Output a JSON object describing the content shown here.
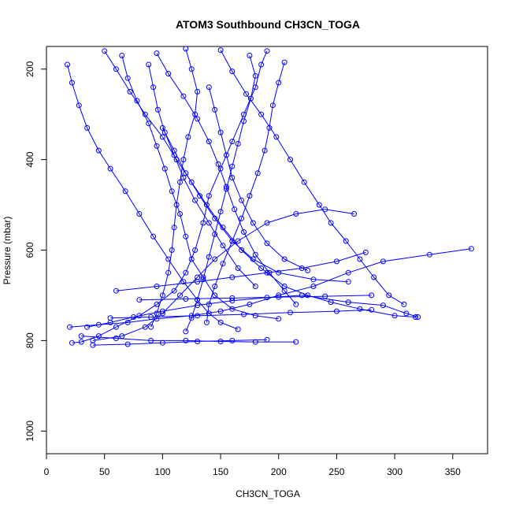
{
  "chart_data": {
    "type": "scatter",
    "title": "ATOM3 Southbound CH3CN_TOGA",
    "xlabel": "CH3CN_TOGA",
    "ylabel": "Pressure (mbar)",
    "xlim": [
      0,
      380
    ],
    "ylim": [
      1050,
      150
    ],
    "y_reversed": true,
    "x_ticks": [
      0,
      50,
      100,
      150,
      200,
      250,
      300,
      350
    ],
    "y_ticks": [
      200,
      400,
      600,
      800,
      1000
    ],
    "grid": false,
    "legend": "none",
    "color": "#0000ff",
    "marker": "open-circle",
    "series": [
      {
        "values": [
          [
            22,
            805
          ],
          [
            30,
            803
          ],
          [
            45,
            790
          ],
          [
            60,
            770
          ],
          [
            80,
            745
          ],
          [
            95,
            720
          ],
          [
            110,
            690
          ],
          [
            120,
            650
          ],
          [
            128,
            600
          ],
          [
            135,
            540
          ],
          [
            140,
            480
          ],
          [
            150,
            420
          ],
          [
            160,
            360
          ],
          [
            170,
            300
          ],
          [
            180,
            240
          ],
          [
            185,
            190
          ],
          [
            190,
            160
          ]
        ]
      },
      {
        "values": [
          [
            35,
            770
          ],
          [
            55,
            760
          ],
          [
            75,
            748
          ],
          [
            100,
            735
          ],
          [
            130,
            722
          ],
          [
            160,
            712
          ],
          [
            190,
            705
          ],
          [
            220,
            700
          ],
          [
            260,
            715
          ],
          [
            290,
            722
          ],
          [
            310,
            740
          ],
          [
            320,
            748
          ]
        ]
      },
      {
        "values": [
          [
            20,
            770
          ],
          [
            45,
            765
          ],
          [
            70,
            760
          ],
          [
            95,
            752
          ],
          [
            125,
            745
          ],
          [
            150,
            735
          ],
          [
            175,
            720
          ],
          [
            200,
            700
          ],
          [
            230,
            680
          ],
          [
            260,
            650
          ],
          [
            290,
            625
          ],
          [
            330,
            610
          ],
          [
            366,
            597
          ]
        ]
      },
      {
        "values": [
          [
            40,
            800
          ],
          [
            65,
            790
          ],
          [
            85,
            770
          ],
          [
            100,
            740
          ],
          [
            115,
            700
          ],
          [
            130,
            660
          ],
          [
            145,
            620
          ],
          [
            165,
            580
          ],
          [
            190,
            540
          ],
          [
            215,
            520
          ],
          [
            240,
            510
          ],
          [
            265,
            520
          ]
        ]
      },
      {
        "values": [
          [
            18,
            190
          ],
          [
            22,
            230
          ],
          [
            28,
            280
          ],
          [
            35,
            330
          ],
          [
            45,
            380
          ],
          [
            55,
            420
          ],
          [
            68,
            470
          ],
          [
            80,
            520
          ],
          [
            92,
            570
          ],
          [
            105,
            620
          ],
          [
            118,
            670
          ],
          [
            130,
            710
          ],
          [
            140,
            740
          ],
          [
            150,
            760
          ],
          [
            165,
            775
          ]
        ]
      },
      {
        "values": [
          [
            50,
            160
          ],
          [
            60,
            200
          ],
          [
            72,
            250
          ],
          [
            85,
            300
          ],
          [
            100,
            350
          ],
          [
            112,
            400
          ],
          [
            125,
            450
          ],
          [
            138,
            500
          ],
          [
            152,
            550
          ],
          [
            168,
            600
          ],
          [
            185,
            640
          ],
          [
            205,
            680
          ],
          [
            225,
            700
          ],
          [
            245,
            715
          ],
          [
            270,
            730
          ],
          [
            300,
            745
          ],
          [
            318,
            748
          ]
        ]
      },
      {
        "values": [
          [
            95,
            165
          ],
          [
            105,
            210
          ],
          [
            118,
            260
          ],
          [
            130,
            310
          ],
          [
            140,
            360
          ],
          [
            148,
            410
          ],
          [
            155,
            460
          ],
          [
            162,
            510
          ],
          [
            170,
            560
          ],
          [
            180,
            610
          ],
          [
            192,
            650
          ],
          [
            205,
            690
          ],
          [
            215,
            720
          ]
        ]
      },
      {
        "values": [
          [
            120,
            155
          ],
          [
            125,
            200
          ],
          [
            130,
            250
          ],
          [
            128,
            300
          ],
          [
            122,
            350
          ],
          [
            118,
            400
          ],
          [
            115,
            450
          ],
          [
            112,
            500
          ],
          [
            110,
            550
          ],
          [
            108,
            600
          ],
          [
            105,
            650
          ],
          [
            100,
            700
          ],
          [
            95,
            740
          ],
          [
            90,
            770
          ]
        ]
      },
      {
        "values": [
          [
            150,
            158
          ],
          [
            160,
            205
          ],
          [
            172,
            255
          ],
          [
            185,
            300
          ],
          [
            198,
            350
          ],
          [
            210,
            400
          ],
          [
            222,
            450
          ],
          [
            235,
            500
          ],
          [
            245,
            540
          ],
          [
            258,
            580
          ],
          [
            270,
            620
          ],
          [
            282,
            660
          ],
          [
            295,
            700
          ],
          [
            308,
            720
          ]
        ]
      },
      {
        "values": [
          [
            65,
            170
          ],
          [
            70,
            220
          ],
          [
            78,
            270
          ],
          [
            88,
            320
          ],
          [
            95,
            370
          ],
          [
            102,
            420
          ],
          [
            108,
            470
          ],
          [
            115,
            520
          ],
          [
            120,
            570
          ],
          [
            125,
            620
          ],
          [
            135,
            660
          ],
          [
            145,
            700
          ],
          [
            160,
            730
          ],
          [
            180,
            745
          ],
          [
            200,
            752
          ]
        ]
      },
      {
        "values": [
          [
            175,
            170
          ],
          [
            180,
            215
          ],
          [
            176,
            265
          ],
          [
            170,
            315
          ],
          [
            165,
            365
          ],
          [
            160,
            415
          ],
          [
            155,
            465
          ],
          [
            150,
            515
          ],
          [
            145,
            565
          ],
          [
            140,
            615
          ],
          [
            135,
            665
          ],
          [
            130,
            710
          ],
          [
            125,
            750
          ],
          [
            120,
            780
          ]
        ]
      },
      {
        "values": [
          [
            205,
            185
          ],
          [
            200,
            230
          ],
          [
            195,
            280
          ],
          [
            192,
            330
          ],
          [
            188,
            380
          ],
          [
            182,
            430
          ],
          [
            175,
            480
          ],
          [
            168,
            530
          ],
          [
            160,
            580
          ],
          [
            152,
            630
          ],
          [
            145,
            680
          ],
          [
            140,
            720
          ],
          [
            138,
            760
          ]
        ]
      },
      {
        "values": [
          [
            30,
            790
          ],
          [
            60,
            795
          ],
          [
            90,
            800
          ],
          [
            120,
            800
          ],
          [
            150,
            802
          ],
          [
            180,
            803
          ],
          [
            215,
            803
          ]
        ]
      },
      {
        "values": [
          [
            40,
            810
          ],
          [
            70,
            808
          ],
          [
            100,
            805
          ],
          [
            130,
            802
          ],
          [
            160,
            800
          ],
          [
            190,
            798
          ]
        ]
      },
      {
        "values": [
          [
            55,
            750
          ],
          [
            90,
            748
          ],
          [
            130,
            745
          ],
          [
            170,
            742
          ],
          [
            210,
            738
          ],
          [
            250,
            735
          ],
          [
            280,
            732
          ]
        ]
      },
      {
        "values": [
          [
            80,
            710
          ],
          [
            120,
            708
          ],
          [
            160,
            706
          ],
          [
            200,
            704
          ],
          [
            240,
            702
          ],
          [
            280,
            700
          ]
        ]
      },
      {
        "values": [
          [
            60,
            690
          ],
          [
            95,
            680
          ],
          [
            130,
            670
          ],
          [
            160,
            660
          ],
          [
            190,
            650
          ],
          [
            220,
            640
          ],
          [
            250,
            625
          ],
          [
            275,
            605
          ]
        ]
      },
      {
        "values": [
          [
            100,
            330
          ],
          [
            110,
            380
          ],
          [
            120,
            430
          ],
          [
            132,
            480
          ],
          [
            145,
            530
          ],
          [
            160,
            580
          ],
          [
            178,
            620
          ],
          [
            200,
            650
          ],
          [
            230,
            665
          ],
          [
            260,
            670
          ]
        ]
      },
      {
        "values": [
          [
            140,
            240
          ],
          [
            145,
            290
          ],
          [
            150,
            340
          ],
          [
            155,
            390
          ],
          [
            160,
            440
          ],
          [
            168,
            490
          ],
          [
            178,
            540
          ],
          [
            190,
            585
          ],
          [
            205,
            620
          ],
          [
            225,
            645
          ]
        ]
      },
      {
        "values": [
          [
            88,
            190
          ],
          [
            92,
            240
          ],
          [
            96,
            290
          ],
          [
            102,
            340
          ],
          [
            110,
            390
          ],
          [
            118,
            440
          ],
          [
            128,
            490
          ],
          [
            140,
            540
          ],
          [
            152,
            590
          ],
          [
            165,
            640
          ],
          [
            180,
            680
          ]
        ]
      }
    ]
  }
}
